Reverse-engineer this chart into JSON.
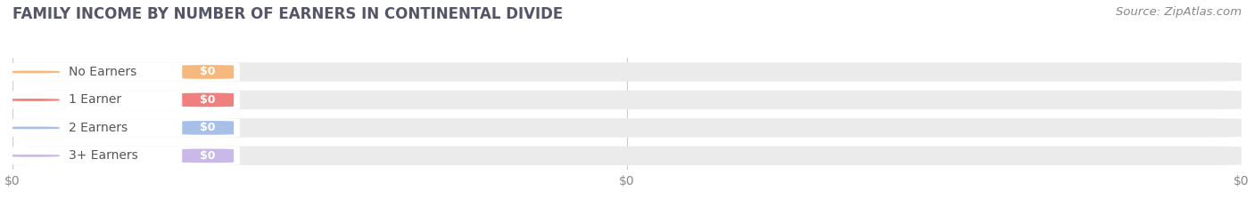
{
  "title": "FAMILY INCOME BY NUMBER OF EARNERS IN CONTINENTAL DIVIDE",
  "source": "Source: ZipAtlas.com",
  "categories": [
    "No Earners",
    "1 Earner",
    "2 Earners",
    "3+ Earners"
  ],
  "values": [
    0,
    0,
    0,
    0
  ],
  "bar_colors": [
    "#f5b97f",
    "#f08080",
    "#a8c0e8",
    "#c9b8e8"
  ],
  "bar_bg_color": "#ebebeb",
  "background_color": "#ffffff",
  "title_fontsize": 12,
  "title_color": "#555566",
  "source_fontsize": 9.5,
  "source_color": "#888888",
  "tick_fontsize": 10,
  "tick_color": "#888888",
  "label_fontsize": 10,
  "label_color": "#555555",
  "value_fontsize": 9,
  "xticks": [
    0,
    0.5,
    1.0
  ],
  "xtick_labels": [
    "$0",
    "$0",
    "$0"
  ]
}
